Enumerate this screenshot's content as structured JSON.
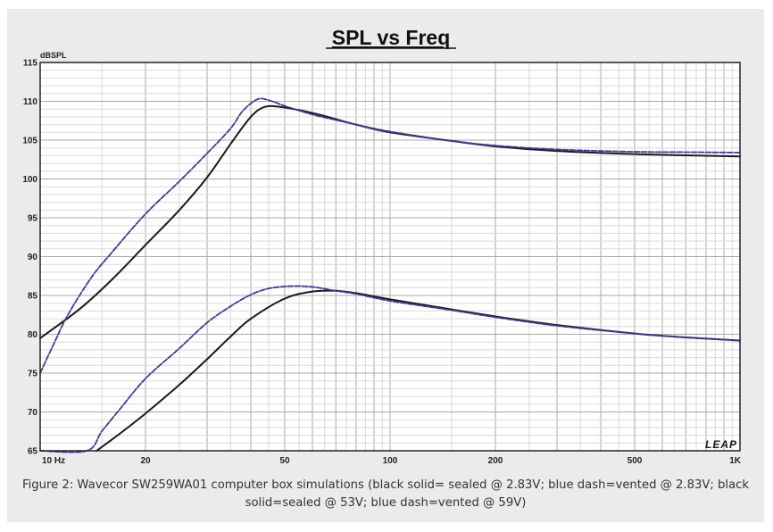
{
  "chart_data": {
    "type": "line",
    "title": "SPL vs Freq",
    "ylabel": "dBSPL",
    "xscale": "log",
    "xlim": [
      10,
      1000
    ],
    "ylim": [
      65,
      115
    ],
    "grid": true,
    "legend": "none",
    "watermark": "LEAP",
    "x_tick_labels": [
      {
        "x": 10,
        "label": "10 Hz"
      },
      {
        "x": 20,
        "label": "20"
      },
      {
        "x": 50,
        "label": "50"
      },
      {
        "x": 100,
        "label": "100"
      },
      {
        "x": 200,
        "label": "200"
      },
      {
        "x": 500,
        "label": "500"
      },
      {
        "x": 1000,
        "label": "1K"
      }
    ],
    "y_ticks": [
      65,
      70,
      75,
      80,
      85,
      90,
      95,
      100,
      105,
      110,
      115
    ],
    "series": [
      {
        "color": "#1a1a1a",
        "style": "solid",
        "points": [
          [
            10,
            79.5
          ],
          [
            13,
            83.3
          ],
          [
            16,
            87
          ],
          [
            20,
            91.5
          ],
          [
            25,
            96
          ],
          [
            30,
            100.2
          ],
          [
            35,
            104.5
          ],
          [
            40,
            108
          ],
          [
            44,
            109.3
          ],
          [
            50,
            109.2
          ],
          [
            60,
            108.5
          ],
          [
            70,
            107.7
          ],
          [
            80,
            107
          ],
          [
            100,
            106
          ],
          [
            150,
            104.9
          ],
          [
            200,
            104.2
          ],
          [
            300,
            103.6
          ],
          [
            500,
            103.2
          ],
          [
            700,
            103.05
          ],
          [
            1000,
            102.9
          ]
        ]
      },
      {
        "color": "#3c3c96",
        "style": "dash",
        "points": [
          [
            10,
            75
          ],
          [
            11,
            79
          ],
          [
            12,
            82.5
          ],
          [
            14,
            87.3
          ],
          [
            16,
            90.5
          ],
          [
            20,
            95.5
          ],
          [
            25,
            99.7
          ],
          [
            30,
            103.3
          ],
          [
            35,
            106.5
          ],
          [
            38,
            108.8
          ],
          [
            42,
            110.3
          ],
          [
            46,
            110
          ],
          [
            50,
            109.4
          ],
          [
            60,
            108.3
          ],
          [
            70,
            107.6
          ],
          [
            80,
            107
          ],
          [
            100,
            106.1
          ],
          [
            150,
            104.9
          ],
          [
            200,
            104.3
          ],
          [
            300,
            103.8
          ],
          [
            500,
            103.5
          ],
          [
            700,
            103.45
          ],
          [
            1000,
            103.4
          ]
        ]
      },
      {
        "color": "#1a1a1a",
        "style": "solid",
        "points": [
          [
            14.5,
            65
          ],
          [
            17,
            67.3
          ],
          [
            20,
            69.8
          ],
          [
            25,
            73.5
          ],
          [
            30,
            76.8
          ],
          [
            35,
            79.7
          ],
          [
            40,
            82
          ],
          [
            50,
            84.6
          ],
          [
            60,
            85.5
          ],
          [
            70,
            85.6
          ],
          [
            80,
            85.3
          ],
          [
            100,
            84.5
          ],
          [
            150,
            83.2
          ],
          [
            200,
            82.3
          ],
          [
            300,
            81.2
          ],
          [
            500,
            80.1
          ],
          [
            700,
            79.6
          ],
          [
            1000,
            79.2
          ]
        ]
      },
      {
        "color": "#3c3c96",
        "style": "dash",
        "points": [
          [
            10,
            65
          ],
          [
            13.6,
            65
          ],
          [
            15,
            67.5
          ],
          [
            17,
            70.5
          ],
          [
            20,
            74.3
          ],
          [
            25,
            78.2
          ],
          [
            30,
            81.5
          ],
          [
            35,
            83.6
          ],
          [
            40,
            85.1
          ],
          [
            45,
            85.9
          ],
          [
            52,
            86.2
          ],
          [
            60,
            86.1
          ],
          [
            70,
            85.6
          ],
          [
            80,
            85.2
          ],
          [
            100,
            84.3
          ],
          [
            150,
            83.1
          ],
          [
            200,
            82.2
          ],
          [
            300,
            81.1
          ],
          [
            500,
            80.1
          ],
          [
            700,
            79.6
          ],
          [
            1000,
            79.2
          ]
        ]
      }
    ]
  },
  "caption": "Figure 2: Wavecor SW259WA01 computer box simulations (black solid= sealed @ 2.83V; blue dash=vented @ 2.83V; black solid=sealed @ 53V; blue dash=vented @ 59V)"
}
